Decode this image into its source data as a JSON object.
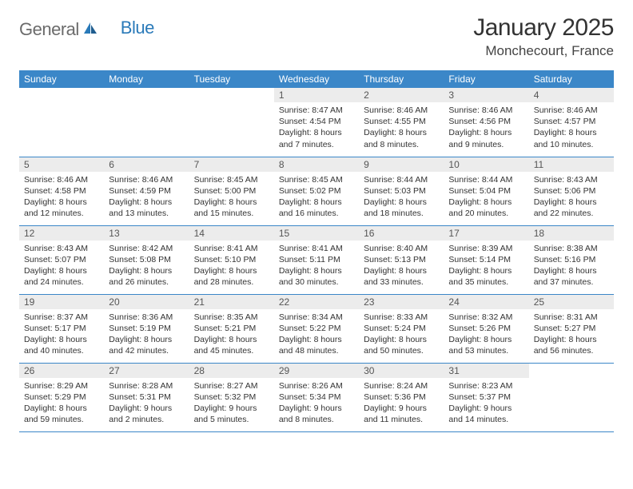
{
  "brand": {
    "general": "General",
    "blue": "Blue"
  },
  "title": "January 2025",
  "location": "Monchecourt, France",
  "colors": {
    "header_bg": "#3b87c8",
    "header_text": "#ffffff",
    "daynum_bg": "#ececec",
    "rule": "#3b87c8",
    "logo_gray": "#6b6b6b",
    "logo_blue": "#2a7ab9"
  },
  "dayNames": [
    "Sunday",
    "Monday",
    "Tuesday",
    "Wednesday",
    "Thursday",
    "Friday",
    "Saturday"
  ],
  "startOffset": 3,
  "days": [
    {
      "n": 1,
      "sunrise": "8:47 AM",
      "sunset": "4:54 PM",
      "daylight": "8 hours and 7 minutes."
    },
    {
      "n": 2,
      "sunrise": "8:46 AM",
      "sunset": "4:55 PM",
      "daylight": "8 hours and 8 minutes."
    },
    {
      "n": 3,
      "sunrise": "8:46 AM",
      "sunset": "4:56 PM",
      "daylight": "8 hours and 9 minutes."
    },
    {
      "n": 4,
      "sunrise": "8:46 AM",
      "sunset": "4:57 PM",
      "daylight": "8 hours and 10 minutes."
    },
    {
      "n": 5,
      "sunrise": "8:46 AM",
      "sunset": "4:58 PM",
      "daylight": "8 hours and 12 minutes."
    },
    {
      "n": 6,
      "sunrise": "8:46 AM",
      "sunset": "4:59 PM",
      "daylight": "8 hours and 13 minutes."
    },
    {
      "n": 7,
      "sunrise": "8:45 AM",
      "sunset": "5:00 PM",
      "daylight": "8 hours and 15 minutes."
    },
    {
      "n": 8,
      "sunrise": "8:45 AM",
      "sunset": "5:02 PM",
      "daylight": "8 hours and 16 minutes."
    },
    {
      "n": 9,
      "sunrise": "8:44 AM",
      "sunset": "5:03 PM",
      "daylight": "8 hours and 18 minutes."
    },
    {
      "n": 10,
      "sunrise": "8:44 AM",
      "sunset": "5:04 PM",
      "daylight": "8 hours and 20 minutes."
    },
    {
      "n": 11,
      "sunrise": "8:43 AM",
      "sunset": "5:06 PM",
      "daylight": "8 hours and 22 minutes."
    },
    {
      "n": 12,
      "sunrise": "8:43 AM",
      "sunset": "5:07 PM",
      "daylight": "8 hours and 24 minutes."
    },
    {
      "n": 13,
      "sunrise": "8:42 AM",
      "sunset": "5:08 PM",
      "daylight": "8 hours and 26 minutes."
    },
    {
      "n": 14,
      "sunrise": "8:41 AM",
      "sunset": "5:10 PM",
      "daylight": "8 hours and 28 minutes."
    },
    {
      "n": 15,
      "sunrise": "8:41 AM",
      "sunset": "5:11 PM",
      "daylight": "8 hours and 30 minutes."
    },
    {
      "n": 16,
      "sunrise": "8:40 AM",
      "sunset": "5:13 PM",
      "daylight": "8 hours and 33 minutes."
    },
    {
      "n": 17,
      "sunrise": "8:39 AM",
      "sunset": "5:14 PM",
      "daylight": "8 hours and 35 minutes."
    },
    {
      "n": 18,
      "sunrise": "8:38 AM",
      "sunset": "5:16 PM",
      "daylight": "8 hours and 37 minutes."
    },
    {
      "n": 19,
      "sunrise": "8:37 AM",
      "sunset": "5:17 PM",
      "daylight": "8 hours and 40 minutes."
    },
    {
      "n": 20,
      "sunrise": "8:36 AM",
      "sunset": "5:19 PM",
      "daylight": "8 hours and 42 minutes."
    },
    {
      "n": 21,
      "sunrise": "8:35 AM",
      "sunset": "5:21 PM",
      "daylight": "8 hours and 45 minutes."
    },
    {
      "n": 22,
      "sunrise": "8:34 AM",
      "sunset": "5:22 PM",
      "daylight": "8 hours and 48 minutes."
    },
    {
      "n": 23,
      "sunrise": "8:33 AM",
      "sunset": "5:24 PM",
      "daylight": "8 hours and 50 minutes."
    },
    {
      "n": 24,
      "sunrise": "8:32 AM",
      "sunset": "5:26 PM",
      "daylight": "8 hours and 53 minutes."
    },
    {
      "n": 25,
      "sunrise": "8:31 AM",
      "sunset": "5:27 PM",
      "daylight": "8 hours and 56 minutes."
    },
    {
      "n": 26,
      "sunrise": "8:29 AM",
      "sunset": "5:29 PM",
      "daylight": "8 hours and 59 minutes."
    },
    {
      "n": 27,
      "sunrise": "8:28 AM",
      "sunset": "5:31 PM",
      "daylight": "9 hours and 2 minutes."
    },
    {
      "n": 28,
      "sunrise": "8:27 AM",
      "sunset": "5:32 PM",
      "daylight": "9 hours and 5 minutes."
    },
    {
      "n": 29,
      "sunrise": "8:26 AM",
      "sunset": "5:34 PM",
      "daylight": "9 hours and 8 minutes."
    },
    {
      "n": 30,
      "sunrise": "8:24 AM",
      "sunset": "5:36 PM",
      "daylight": "9 hours and 11 minutes."
    },
    {
      "n": 31,
      "sunrise": "8:23 AM",
      "sunset": "5:37 PM",
      "daylight": "9 hours and 14 minutes."
    }
  ],
  "labels": {
    "sunrise": "Sunrise: ",
    "sunset": "Sunset: ",
    "daylight": "Daylight: "
  }
}
